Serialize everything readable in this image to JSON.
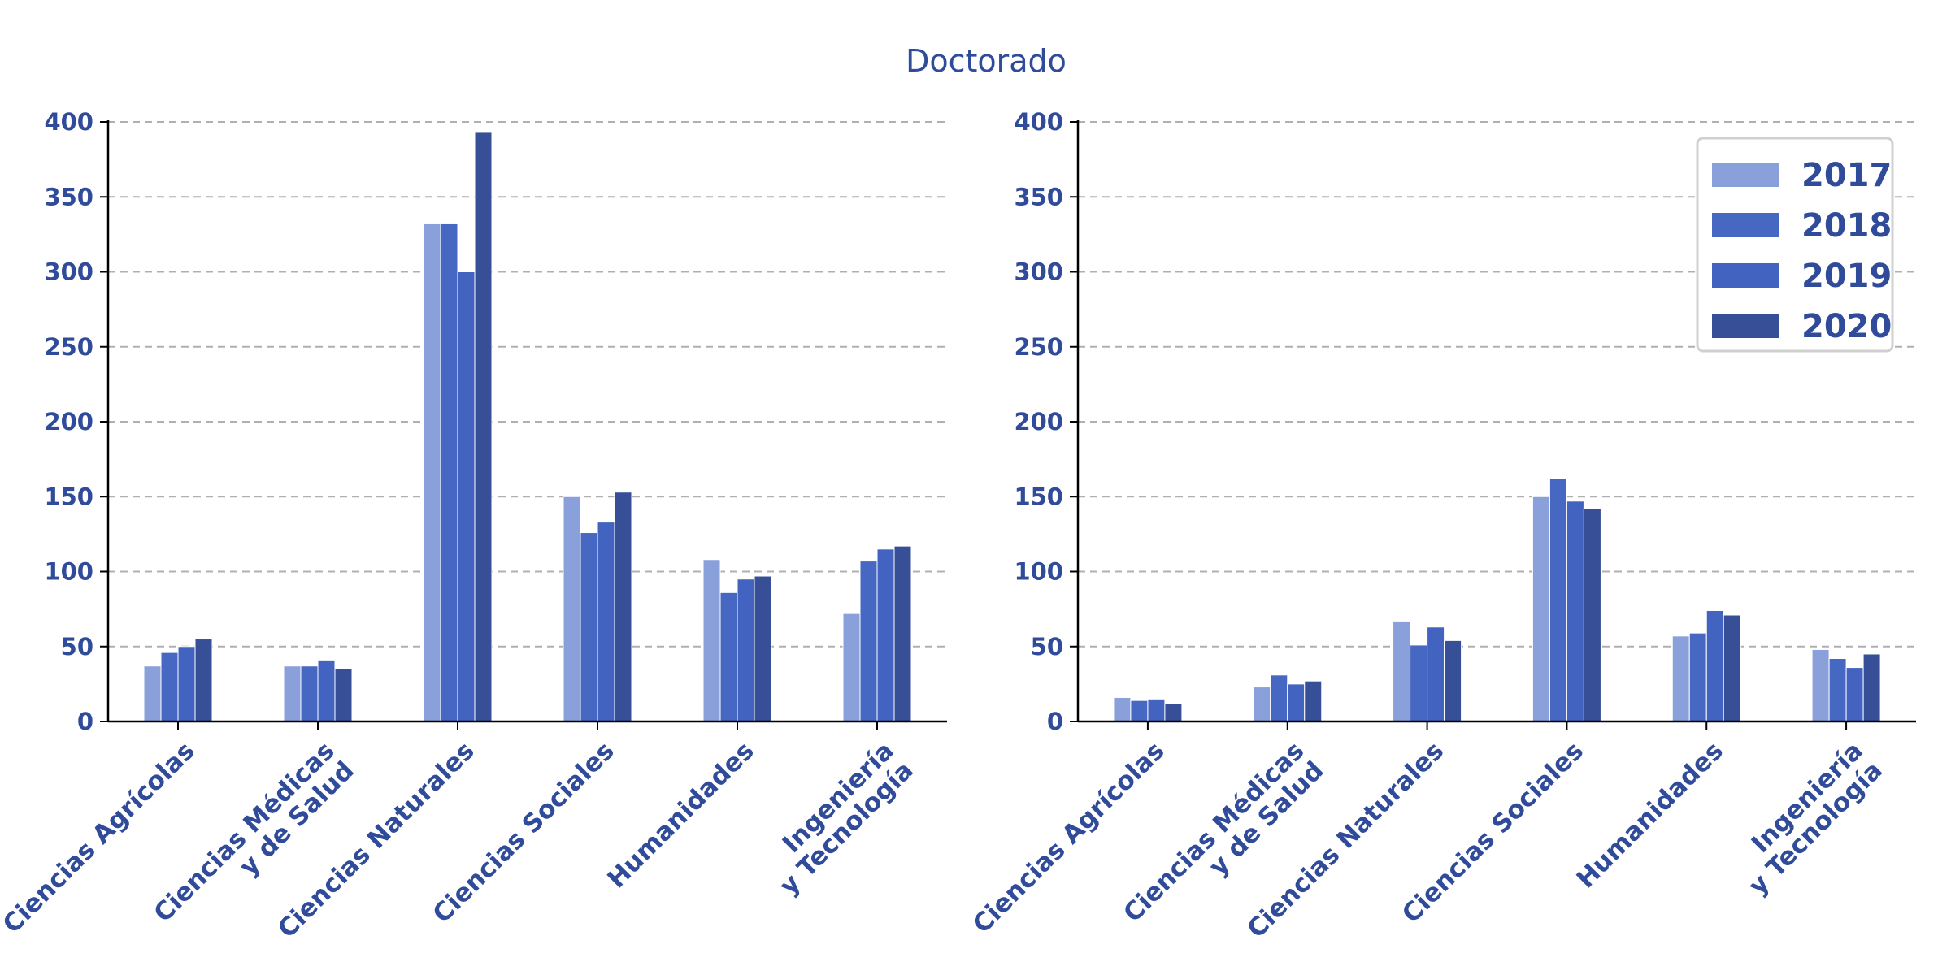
{
  "chart_data": {
    "type": "bar",
    "title": "Doctorado",
    "legend": {
      "placement": "top-right",
      "entries": [
        "2017",
        "2018",
        "2019",
        "2020"
      ]
    },
    "colors": {
      "2017": "#8aa0da",
      "2018": "#4667c2",
      "2019": "#4363c1",
      "2020": "#364f97",
      "axis": "#000000",
      "text": "#2f4b9a",
      "grid": "#b0b0b0"
    },
    "grid": true,
    "panels": [
      {
        "id": "left",
        "categories": [
          "Ciencias Agrícolas",
          "Ciencias Médicas\ny de Salud",
          "Ciencias Naturales",
          "Ciencias Sociales",
          "Humanidades",
          "Ingeniería\ny Tecnología"
        ],
        "ylim": [
          0,
          400
        ],
        "yticks": [
          0,
          50,
          100,
          150,
          200,
          250,
          300,
          350,
          400
        ],
        "series": [
          {
            "name": "2017",
            "values": [
              37,
              37,
              332,
              150,
              108,
              72
            ]
          },
          {
            "name": "2018",
            "values": [
              46,
              37,
              332,
              126,
              86,
              107
            ]
          },
          {
            "name": "2019",
            "values": [
              50,
              41,
              300,
              133,
              95,
              115
            ]
          },
          {
            "name": "2020",
            "values": [
              55,
              35,
              393,
              153,
              97,
              117
            ]
          }
        ]
      },
      {
        "id": "right",
        "categories": [
          "Ciencias Agrícolas",
          "Ciencias Médicas\ny de Salud",
          "Ciencias Naturales",
          "Ciencias Sociales",
          "Humanidades",
          "Ingeniería\ny Tecnología"
        ],
        "ylim": [
          0,
          400
        ],
        "yticks": [
          0,
          50,
          100,
          150,
          200,
          250,
          300,
          350,
          400
        ],
        "series": [
          {
            "name": "2017",
            "values": [
              16,
              23,
              67,
              150,
              57,
              48
            ]
          },
          {
            "name": "2018",
            "values": [
              14,
              31,
              51,
              162,
              59,
              42
            ]
          },
          {
            "name": "2019",
            "values": [
              15,
              25,
              63,
              147,
              74,
              36
            ]
          },
          {
            "name": "2020",
            "values": [
              12,
              27,
              54,
              142,
              71,
              45
            ]
          }
        ]
      }
    ]
  }
}
